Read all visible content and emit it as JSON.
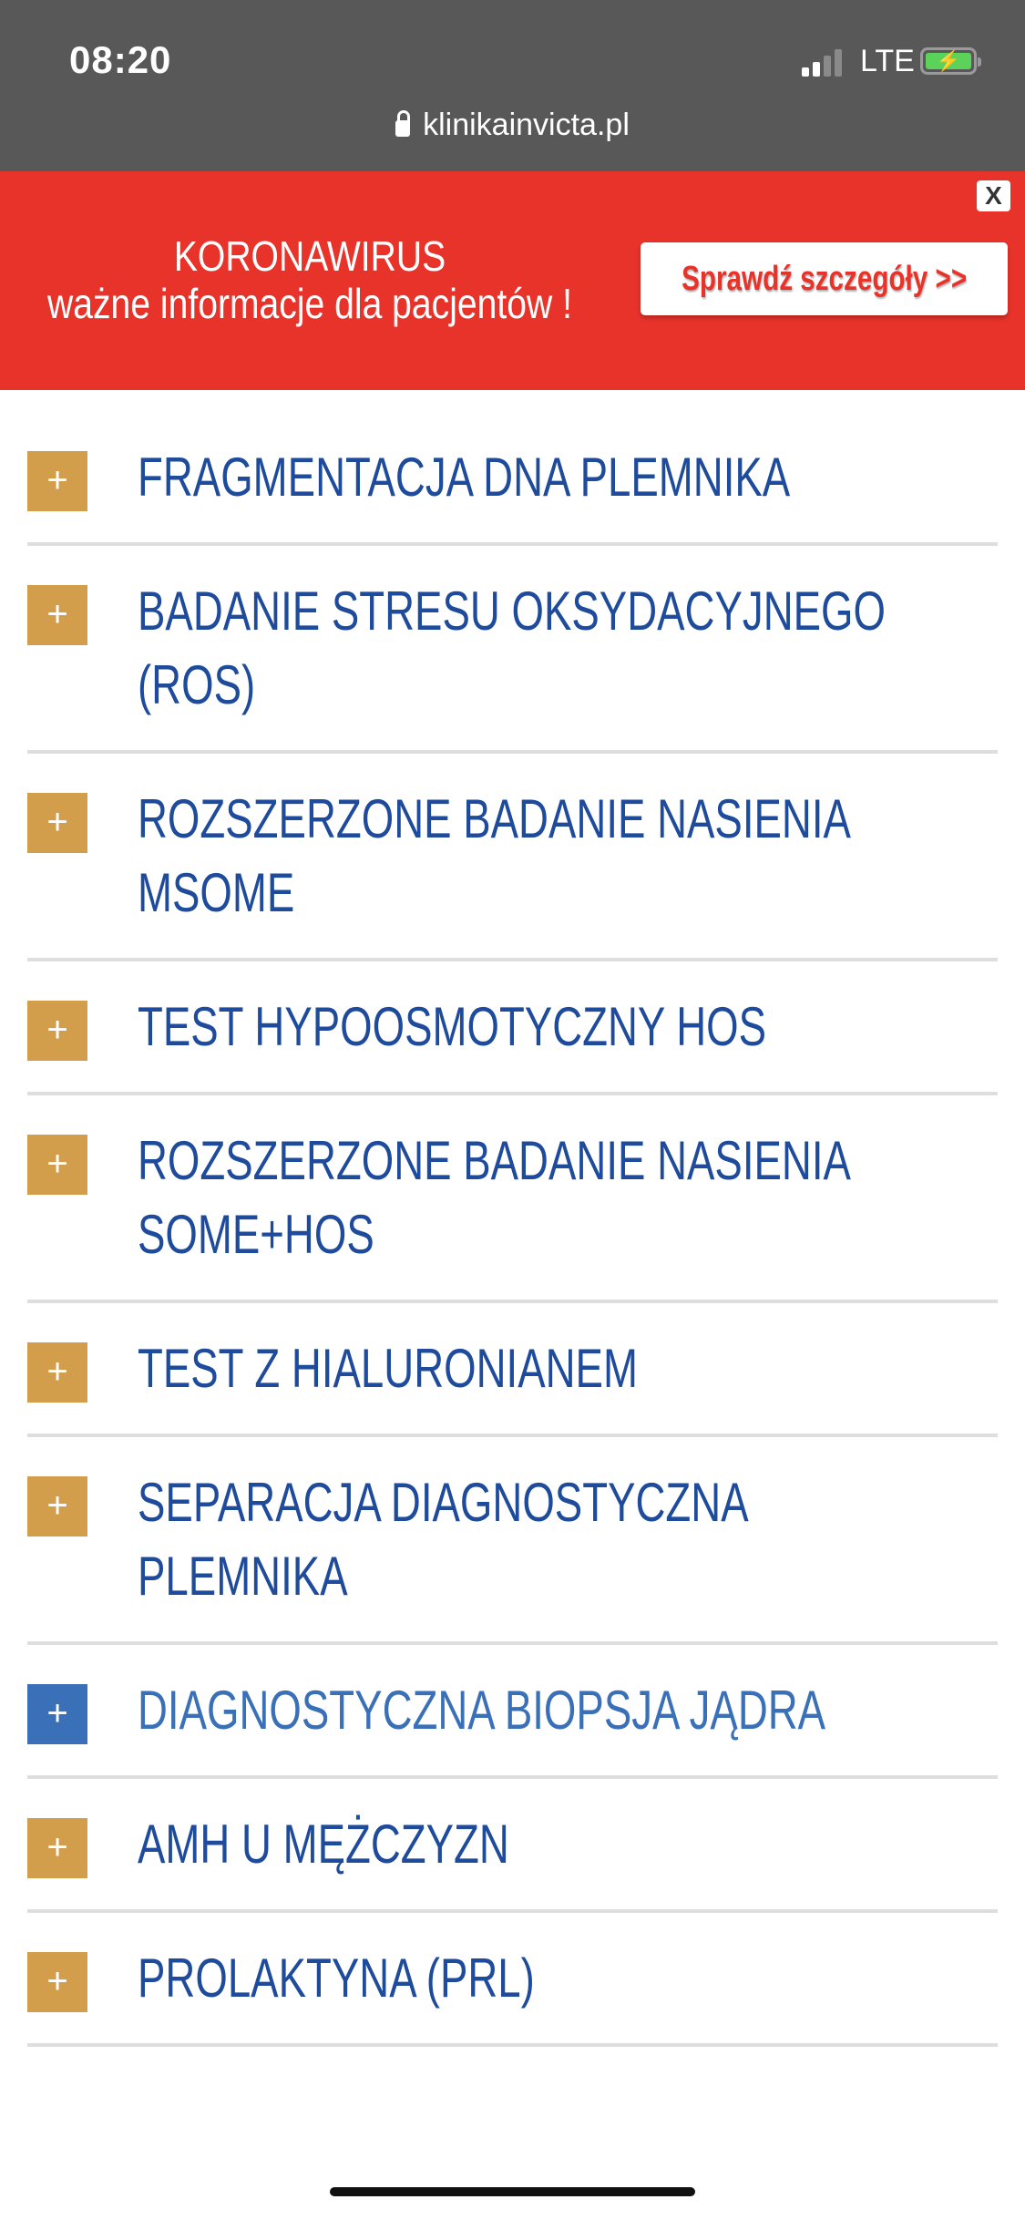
{
  "status_bar": {
    "time": "08:20",
    "network": "LTE",
    "url": "klinikainvicta.pl"
  },
  "banner": {
    "close_label": "X",
    "title": "KORONAWIRUS",
    "subtitle": "ważne informacje dla pacjentów !",
    "cta_label": "Sprawdź szczegóły >>"
  },
  "colors": {
    "banner": "#e8332a",
    "icon": "#d39e4b",
    "icon_active": "#3a70b7",
    "text": "#1e4b9b"
  },
  "accordion": [
    {
      "label": "FRAGMENTACJA DNA PLEMNIKA",
      "active": false
    },
    {
      "label": "BADANIE STRESU OKSYDACYJNEGO\n(ROS)",
      "active": false
    },
    {
      "label": "ROZSZERZONE BADANIE NASIENIA\nMSOME",
      "active": false
    },
    {
      "label": "TEST HYPOOSMOTYCZNY HOS",
      "active": false
    },
    {
      "label": "ROZSZERZONE BADANIE NASIENIA\nSOME+HOS",
      "active": false
    },
    {
      "label": "TEST Z HIALURONIANEM",
      "active": false
    },
    {
      "label": "SEPARACJA DIAGNOSTYCZNA\nPLEMNIKA",
      "active": false
    },
    {
      "label": "DIAGNOSTYCZNA BIOPSJA JĄDRA",
      "active": true
    },
    {
      "label": "AMH U MĘŻCZYZN",
      "active": false
    },
    {
      "label": "PROLAKTYNA (PRL)",
      "active": false
    }
  ],
  "expand_symbol": "+"
}
